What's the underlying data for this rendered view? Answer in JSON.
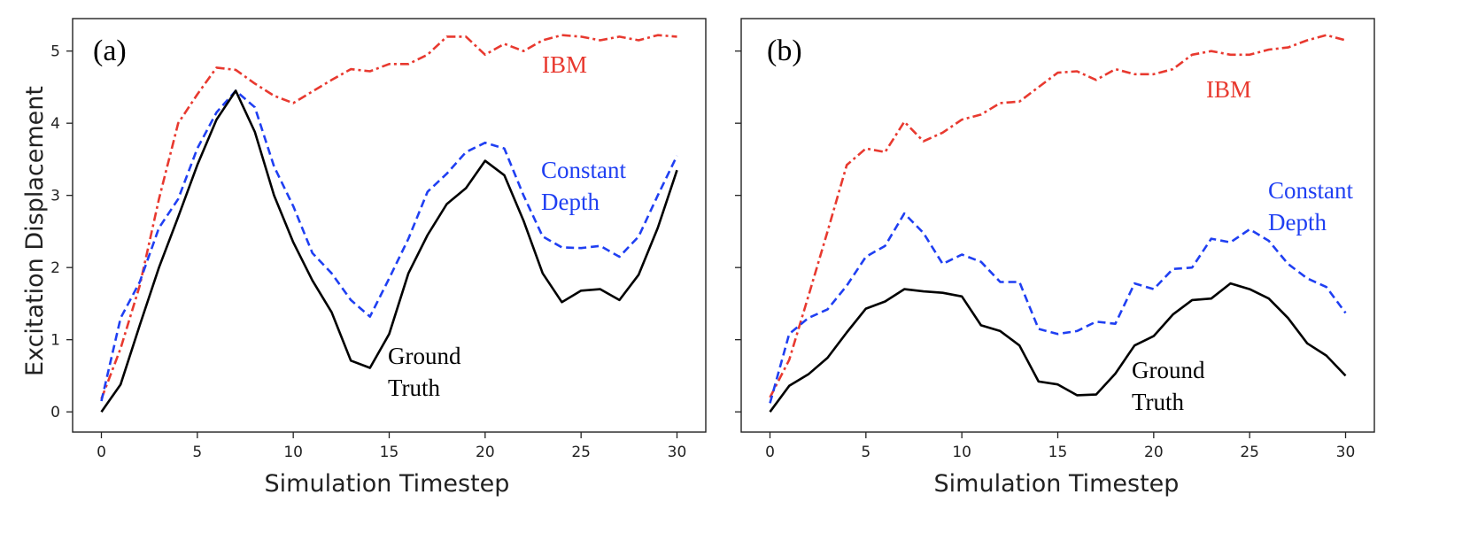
{
  "chart_data": [
    {
      "type": "line",
      "panel_label": "(a)",
      "xlabel": "Simulation Timestep",
      "ylabel": "Excitation Displacement",
      "xlim": [
        -1.5,
        31.5
      ],
      "ylim": [
        -0.28,
        5.45
      ],
      "xticks": [
        0,
        5,
        10,
        15,
        20,
        25,
        30
      ],
      "yticks": [
        0,
        1,
        2,
        3,
        4,
        5
      ],
      "x": [
        0,
        1,
        2,
        3,
        4,
        5,
        6,
        7,
        8,
        9,
        10,
        11,
        12,
        13,
        14,
        15,
        16,
        17,
        18,
        19,
        20,
        21,
        22,
        23,
        24,
        25,
        26,
        27,
        28,
        29,
        30
      ],
      "series": [
        {
          "name": "IBM",
          "color": "#e8392f",
          "style": "dashdot",
          "values": [
            0.18,
            0.88,
            1.75,
            2.95,
            4.0,
            4.4,
            4.77,
            4.74,
            4.55,
            4.38,
            4.28,
            4.44,
            4.6,
            4.75,
            4.72,
            4.82,
            4.82,
            4.95,
            5.2,
            5.2,
            4.95,
            5.1,
            5.0,
            5.15,
            5.22,
            5.2,
            5.15,
            5.2,
            5.15,
            5.22,
            5.2
          ]
        },
        {
          "name": "Constant Depth",
          "color": "#1f3ff2",
          "style": "dashed",
          "values": [
            0.15,
            1.3,
            1.8,
            2.55,
            2.95,
            3.65,
            4.15,
            4.45,
            4.22,
            3.4,
            2.85,
            2.2,
            1.92,
            1.55,
            1.32,
            1.85,
            2.4,
            3.05,
            3.3,
            3.6,
            3.73,
            3.65,
            3.0,
            2.43,
            2.28,
            2.27,
            2.3,
            2.15,
            2.43,
            3.0,
            3.55
          ]
        },
        {
          "name": "Ground Truth",
          "color": "#000000",
          "style": "solid",
          "values": [
            0.0,
            0.38,
            1.2,
            2.0,
            2.7,
            3.42,
            4.05,
            4.45,
            3.88,
            3.0,
            2.35,
            1.82,
            1.38,
            0.71,
            0.61,
            1.08,
            1.92,
            2.45,
            2.88,
            3.1,
            3.48,
            3.28,
            2.65,
            1.92,
            1.52,
            1.68,
            1.7,
            1.55,
            1.9,
            2.55,
            3.35
          ]
        }
      ],
      "annotations": [
        {
          "series": "IBM",
          "lines": [
            "IBM"
          ],
          "color": "#e8392f"
        },
        {
          "series": "Constant Depth",
          "lines": [
            "Constant",
            "Depth"
          ],
          "color": "#1f3ff2"
        },
        {
          "series": "Ground Truth",
          "lines": [
            "Ground",
            "Truth"
          ],
          "color": "#000000"
        }
      ]
    },
    {
      "type": "line",
      "panel_label": "(b)",
      "xlabel": "Simulation Timestep",
      "ylabel": "",
      "xlim": [
        -1.5,
        31.5
      ],
      "ylim": [
        -0.28,
        5.45
      ],
      "xticks": [
        0,
        5,
        10,
        15,
        20,
        25,
        30
      ],
      "yticks": [
        0,
        1,
        2,
        3,
        4,
        5
      ],
      "x": [
        0,
        1,
        2,
        3,
        4,
        5,
        6,
        7,
        8,
        9,
        10,
        11,
        12,
        13,
        14,
        15,
        16,
        17,
        18,
        19,
        20,
        21,
        22,
        23,
        24,
        25,
        26,
        27,
        28,
        29,
        30
      ],
      "series": [
        {
          "name": "IBM",
          "color": "#e8392f",
          "style": "dashdot",
          "values": [
            0.2,
            0.72,
            1.6,
            2.5,
            3.42,
            3.65,
            3.6,
            4.02,
            3.75,
            3.87,
            4.05,
            4.12,
            4.28,
            4.3,
            4.5,
            4.7,
            4.72,
            4.6,
            4.75,
            4.68,
            4.68,
            4.75,
            4.95,
            5.0,
            4.95,
            4.95,
            5.02,
            5.05,
            5.15,
            5.22,
            5.15
          ]
        },
        {
          "name": "Constant Depth",
          "color": "#1f3ff2",
          "style": "dashed",
          "values": [
            0.12,
            1.08,
            1.3,
            1.42,
            1.75,
            2.15,
            2.3,
            2.75,
            2.48,
            2.05,
            2.18,
            2.08,
            1.8,
            1.8,
            1.15,
            1.08,
            1.12,
            1.25,
            1.22,
            1.78,
            1.7,
            1.98,
            2.0,
            2.4,
            2.35,
            2.53,
            2.37,
            2.05,
            1.85,
            1.73,
            1.37
          ]
        },
        {
          "name": "Ground Truth",
          "color": "#000000",
          "style": "solid",
          "values": [
            0.0,
            0.36,
            0.52,
            0.75,
            1.1,
            1.43,
            1.53,
            1.7,
            1.67,
            1.65,
            1.6,
            1.2,
            1.12,
            0.92,
            0.42,
            0.38,
            0.23,
            0.24,
            0.53,
            0.92,
            1.05,
            1.35,
            1.55,
            1.57,
            1.78,
            1.7,
            1.57,
            1.3,
            0.95,
            0.78,
            0.5
          ]
        }
      ],
      "annotations": [
        {
          "series": "IBM",
          "lines": [
            "IBM"
          ],
          "color": "#e8392f"
        },
        {
          "series": "Constant Depth",
          "lines": [
            "Constant",
            "Depth"
          ],
          "color": "#1f3ff2"
        },
        {
          "series": "Ground Truth",
          "lines": [
            "Ground",
            "Truth"
          ],
          "color": "#000000"
        }
      ]
    }
  ]
}
